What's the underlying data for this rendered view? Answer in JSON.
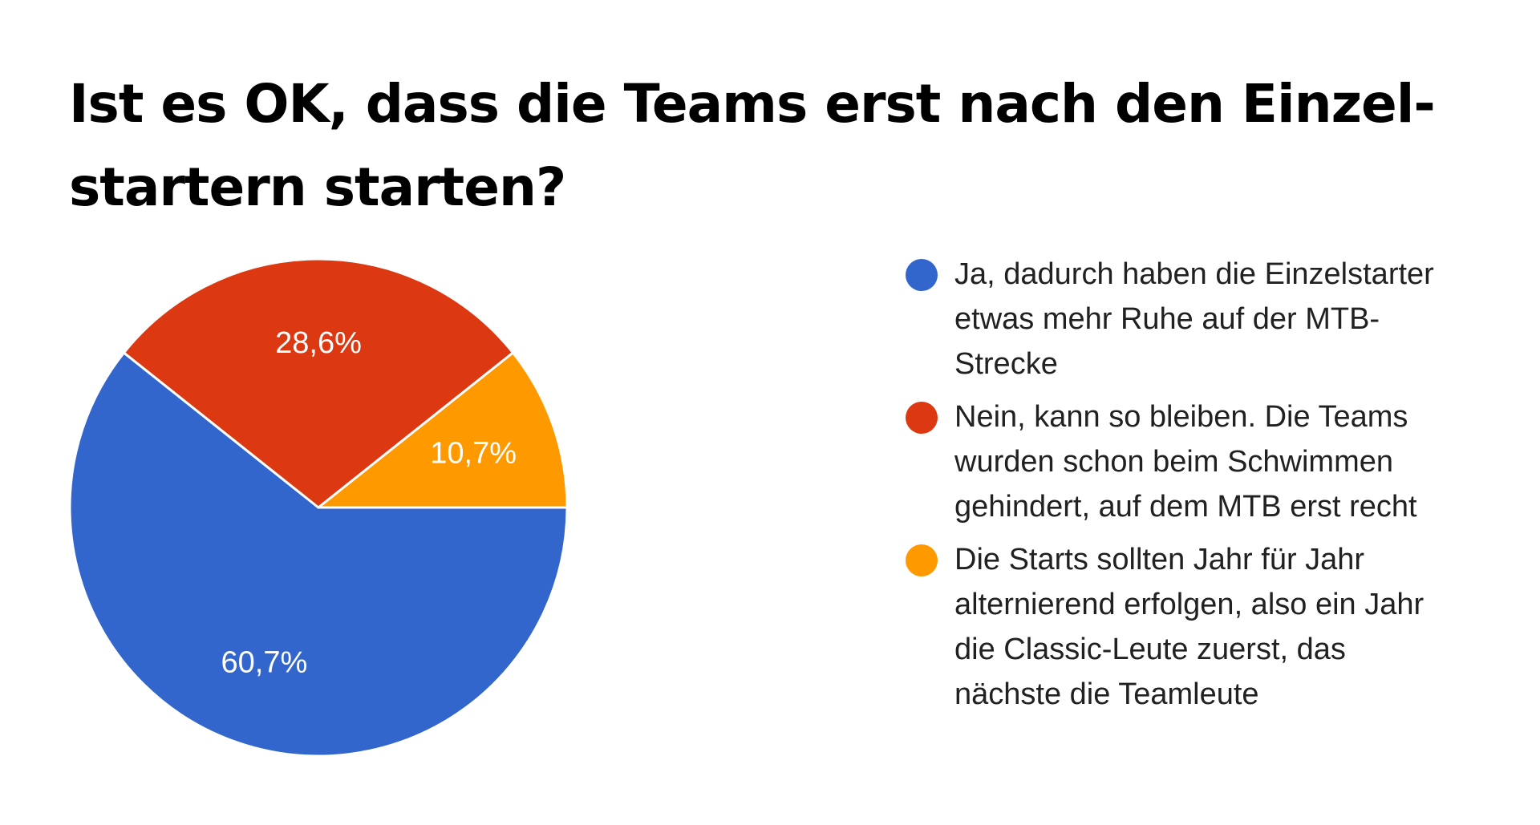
{
  "chart_data": {
    "type": "pie",
    "title": "Ist es OK, dass die Teams erst nach den Einzel-startern starten?",
    "title_lines": [
      "Ist es OK, dass die Teams erst nach den Einzel-",
      "startern starten?"
    ],
    "slices": [
      {
        "label": "Ja, dadurch haben die Einzelstarter etwas mehr Ruhe auf der MTB-Strecke",
        "legend_lines": [
          "Ja, dadurch haben die Einzelstarter",
          "etwas mehr Ruhe auf der MTB-",
          "Strecke"
        ],
        "value": 60.7,
        "display": "60,7%",
        "color": "#3366cc"
      },
      {
        "label": "Nein, kann so bleiben. Die Teams wurden schon beim Schwimmen gehindert, auf dem MTB erst recht",
        "legend_lines": [
          "Nein, kann so bleiben. Die Teams",
          "wurden schon beim Schwimmen",
          "gehindert, auf dem MTB erst recht"
        ],
        "value": 28.6,
        "display": "28,6%",
        "color": "#dc3912"
      },
      {
        "label": "Die Starts sollten Jahr für Jahr alternierend erfolgen, also ein Jahr die Classic-Leute zuerst, das nächste die Teamleute",
        "legend_lines": [
          "Die Starts sollten Jahr für Jahr",
          "alternierend erfolgen, also ein Jahr",
          "die Classic-Leute zuerst, das",
          "nächste die Teamleute"
        ],
        "value": 10.7,
        "display": "10,7%",
        "color": "#ff9900"
      }
    ],
    "legend_position": "right"
  }
}
